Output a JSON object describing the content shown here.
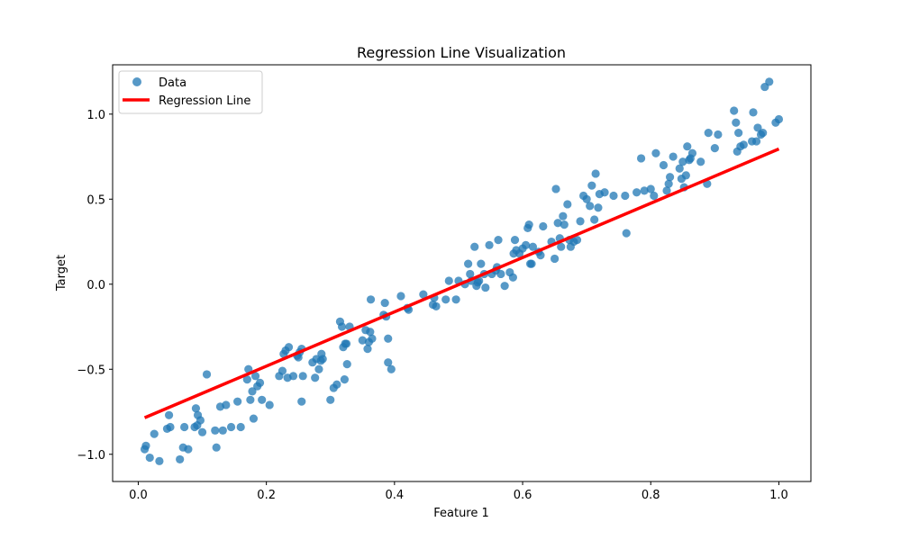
{
  "chart_data": {
    "type": "scatter",
    "title": "Regression Line Visualization",
    "xlabel": "Feature 1",
    "ylabel": "Target",
    "xlim": [
      -0.04,
      1.05
    ],
    "ylim": [
      -1.16,
      1.29
    ],
    "xticks": [
      0.0,
      0.2,
      0.4,
      0.6,
      0.8,
      1.0
    ],
    "xtick_labels": [
      "0.0",
      "0.2",
      "0.4",
      "0.6",
      "0.8",
      "1.0"
    ],
    "yticks": [
      -1.0,
      -0.5,
      0.0,
      0.5,
      1.0
    ],
    "ytick_labels": [
      "−1.0",
      "−0.5",
      "0.0",
      "0.5",
      "1.0"
    ],
    "grid": false,
    "legend_position": "top-left",
    "colors": {
      "data": "#1f77b4",
      "regression": "#ff0000"
    },
    "series": [
      {
        "name": "Data",
        "kind": "scatter",
        "points": [
          [
            0.01,
            -0.97
          ],
          [
            0.012,
            -0.95
          ],
          [
            0.018,
            -1.02
          ],
          [
            0.025,
            -0.88
          ],
          [
            0.033,
            -1.04
          ],
          [
            0.045,
            -0.85
          ],
          [
            0.048,
            -0.77
          ],
          [
            0.05,
            -0.84
          ],
          [
            0.065,
            -1.03
          ],
          [
            0.07,
            -0.96
          ],
          [
            0.072,
            -0.84
          ],
          [
            0.078,
            -0.97
          ],
          [
            0.088,
            -0.84
          ],
          [
            0.09,
            -0.73
          ],
          [
            0.092,
            -0.83
          ],
          [
            0.093,
            -0.77
          ],
          [
            0.097,
            -0.8
          ],
          [
            0.1,
            -0.87
          ],
          [
            0.107,
            -0.53
          ],
          [
            0.12,
            -0.86
          ],
          [
            0.122,
            -0.96
          ],
          [
            0.128,
            -0.72
          ],
          [
            0.132,
            -0.86
          ],
          [
            0.137,
            -0.71
          ],
          [
            0.145,
            -0.84
          ],
          [
            0.155,
            -0.69
          ],
          [
            0.16,
            -0.84
          ],
          [
            0.17,
            -0.56
          ],
          [
            0.172,
            -0.5
          ],
          [
            0.175,
            -0.68
          ],
          [
            0.178,
            -0.63
          ],
          [
            0.18,
            -0.79
          ],
          [
            0.183,
            -0.54
          ],
          [
            0.186,
            -0.6
          ],
          [
            0.19,
            -0.58
          ],
          [
            0.193,
            -0.68
          ],
          [
            0.205,
            -0.71
          ],
          [
            0.22,
            -0.54
          ],
          [
            0.225,
            -0.51
          ],
          [
            0.227,
            -0.41
          ],
          [
            0.23,
            -0.39
          ],
          [
            0.233,
            -0.55
          ],
          [
            0.235,
            -0.37
          ],
          [
            0.242,
            -0.54
          ],
          [
            0.248,
            -0.42
          ],
          [
            0.25,
            -0.43
          ],
          [
            0.252,
            -0.4
          ],
          [
            0.255,
            -0.38
          ],
          [
            0.257,
            -0.54
          ],
          [
            0.255,
            -0.69
          ],
          [
            0.272,
            -0.46
          ],
          [
            0.276,
            -0.55
          ],
          [
            0.278,
            -0.44
          ],
          [
            0.282,
            -0.5
          ],
          [
            0.285,
            -0.45
          ],
          [
            0.286,
            -0.41
          ],
          [
            0.288,
            -0.44
          ],
          [
            0.3,
            -0.68
          ],
          [
            0.305,
            -0.61
          ],
          [
            0.31,
            -0.59
          ],
          [
            0.315,
            -0.22
          ],
          [
            0.318,
            -0.25
          ],
          [
            0.32,
            -0.37
          ],
          [
            0.322,
            -0.56
          ],
          [
            0.323,
            -0.35
          ],
          [
            0.325,
            -0.35
          ],
          [
            0.326,
            -0.47
          ],
          [
            0.33,
            -0.25
          ],
          [
            0.35,
            -0.33
          ],
          [
            0.355,
            -0.27
          ],
          [
            0.358,
            -0.38
          ],
          [
            0.36,
            -0.34
          ],
          [
            0.362,
            -0.28
          ],
          [
            0.365,
            -0.32
          ],
          [
            0.363,
            -0.09
          ],
          [
            0.383,
            -0.18
          ],
          [
            0.385,
            -0.11
          ],
          [
            0.387,
            -0.19
          ],
          [
            0.39,
            -0.32
          ],
          [
            0.39,
            -0.46
          ],
          [
            0.395,
            -0.5
          ],
          [
            0.41,
            -0.07
          ],
          [
            0.42,
            -0.14
          ],
          [
            0.422,
            -0.15
          ],
          [
            0.445,
            -0.06
          ],
          [
            0.46,
            -0.12
          ],
          [
            0.462,
            -0.08
          ],
          [
            0.465,
            -0.13
          ],
          [
            0.48,
            -0.09
          ],
          [
            0.485,
            0.02
          ],
          [
            0.496,
            -0.09
          ],
          [
            0.5,
            0.02
          ],
          [
            0.51,
            0.0
          ],
          [
            0.515,
            0.12
          ],
          [
            0.518,
            0.06
          ],
          [
            0.52,
            0.02
          ],
          [
            0.525,
            0.22
          ],
          [
            0.528,
            -0.01
          ],
          [
            0.53,
            0.01
          ],
          [
            0.532,
            0.02
          ],
          [
            0.535,
            0.12
          ],
          [
            0.54,
            0.06
          ],
          [
            0.542,
            -0.02
          ],
          [
            0.548,
            0.23
          ],
          [
            0.552,
            0.06
          ],
          [
            0.558,
            0.08
          ],
          [
            0.56,
            0.1
          ],
          [
            0.562,
            0.26
          ],
          [
            0.566,
            0.06
          ],
          [
            0.572,
            -0.01
          ],
          [
            0.58,
            0.07
          ],
          [
            0.585,
            0.04
          ],
          [
            0.586,
            0.18
          ],
          [
            0.588,
            0.26
          ],
          [
            0.59,
            0.2
          ],
          [
            0.595,
            0.18
          ],
          [
            0.6,
            0.21
          ],
          [
            0.605,
            0.23
          ],
          [
            0.608,
            0.33
          ],
          [
            0.61,
            0.35
          ],
          [
            0.612,
            0.12
          ],
          [
            0.614,
            0.12
          ],
          [
            0.616,
            0.22
          ],
          [
            0.625,
            0.19
          ],
          [
            0.628,
            0.17
          ],
          [
            0.632,
            0.34
          ],
          [
            0.645,
            0.25
          ],
          [
            0.65,
            0.15
          ],
          [
            0.652,
            0.56
          ],
          [
            0.655,
            0.36
          ],
          [
            0.658,
            0.27
          ],
          [
            0.66,
            0.22
          ],
          [
            0.663,
            0.4
          ],
          [
            0.665,
            0.35
          ],
          [
            0.67,
            0.47
          ],
          [
            0.673,
            0.26
          ],
          [
            0.675,
            0.22
          ],
          [
            0.68,
            0.25
          ],
          [
            0.685,
            0.26
          ],
          [
            0.69,
            0.37
          ],
          [
            0.695,
            0.52
          ],
          [
            0.7,
            0.5
          ],
          [
            0.705,
            0.46
          ],
          [
            0.708,
            0.58
          ],
          [
            0.712,
            0.38
          ],
          [
            0.714,
            0.65
          ],
          [
            0.718,
            0.45
          ],
          [
            0.72,
            0.53
          ],
          [
            0.728,
            0.54
          ],
          [
            0.742,
            0.52
          ],
          [
            0.76,
            0.52
          ],
          [
            0.762,
            0.3
          ],
          [
            0.778,
            0.54
          ],
          [
            0.785,
            0.74
          ],
          [
            0.79,
            0.55
          ],
          [
            0.8,
            0.56
          ],
          [
            0.805,
            0.52
          ],
          [
            0.808,
            0.77
          ],
          [
            0.82,
            0.7
          ],
          [
            0.825,
            0.55
          ],
          [
            0.828,
            0.59
          ],
          [
            0.83,
            0.63
          ],
          [
            0.835,
            0.75
          ],
          [
            0.845,
            0.68
          ],
          [
            0.848,
            0.62
          ],
          [
            0.85,
            0.72
          ],
          [
            0.852,
            0.57
          ],
          [
            0.855,
            0.64
          ],
          [
            0.857,
            0.81
          ],
          [
            0.86,
            0.73
          ],
          [
            0.862,
            0.74
          ],
          [
            0.865,
            0.77
          ],
          [
            0.878,
            0.72
          ],
          [
            0.888,
            0.59
          ],
          [
            0.89,
            0.89
          ],
          [
            0.9,
            0.8
          ],
          [
            0.905,
            0.88
          ],
          [
            0.93,
            1.02
          ],
          [
            0.933,
            0.95
          ],
          [
            0.935,
            0.78
          ],
          [
            0.937,
            0.89
          ],
          [
            0.94,
            0.81
          ],
          [
            0.945,
            0.82
          ],
          [
            0.958,
            0.84
          ],
          [
            0.96,
            1.01
          ],
          [
            0.965,
            0.84
          ],
          [
            0.967,
            0.92
          ],
          [
            0.972,
            0.88
          ],
          [
            0.975,
            0.89
          ],
          [
            0.978,
            1.16
          ],
          [
            0.985,
            1.19
          ],
          [
            0.995,
            0.95
          ],
          [
            1.0,
            0.97
          ]
        ]
      },
      {
        "name": "Regression Line",
        "kind": "line",
        "points": [
          [
            0.01,
            -0.785
          ],
          [
            1.0,
            0.795
          ]
        ]
      }
    ]
  }
}
